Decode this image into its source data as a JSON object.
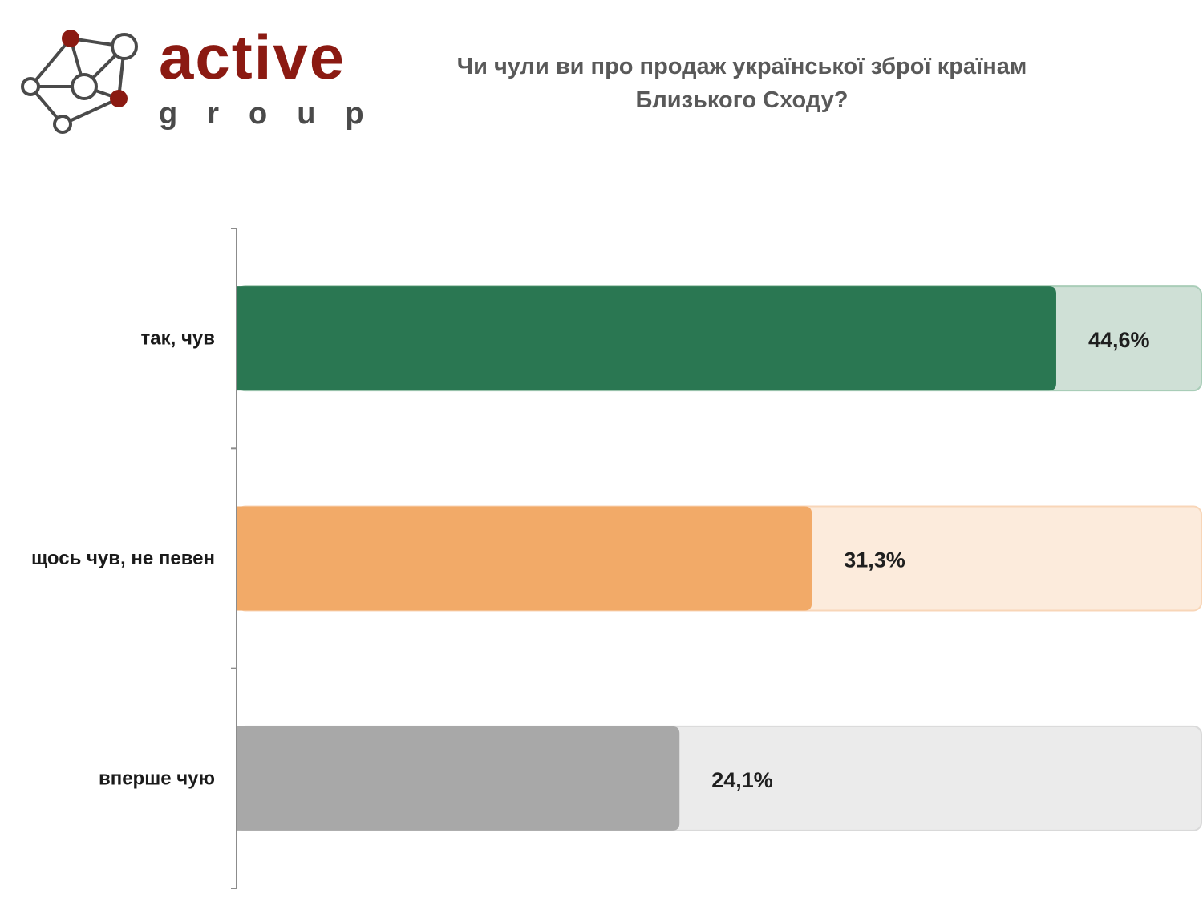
{
  "logo": {
    "word": "active",
    "sub": "group",
    "colors": {
      "accent": "#8b1a12",
      "line": "#4a4a4a"
    }
  },
  "chart_data": {
    "type": "bar",
    "orientation": "horizontal",
    "title": "Чи чули ви про продаж української зброї країнам Близького Сходу?",
    "categories": [
      "так, чув",
      "щось чув, не певен",
      "вперше чую"
    ],
    "values": [
      44.6,
      31.3,
      24.1
    ],
    "value_labels": [
      "44,6%",
      "31,3%",
      "24,1%"
    ],
    "unit": "%",
    "xlim": [
      0,
      52.5
    ],
    "grid": false,
    "legend": "none",
    "colors": [
      "#2a7752",
      "#f2aa68",
      "#a8a8a8"
    ],
    "track_colors": [
      "#cfe0d6",
      "#fcebdc",
      "#ebebeb"
    ],
    "track_border_colors": [
      "#a9cdb8",
      "#f8d6b8",
      "#d9d9d9"
    ]
  }
}
